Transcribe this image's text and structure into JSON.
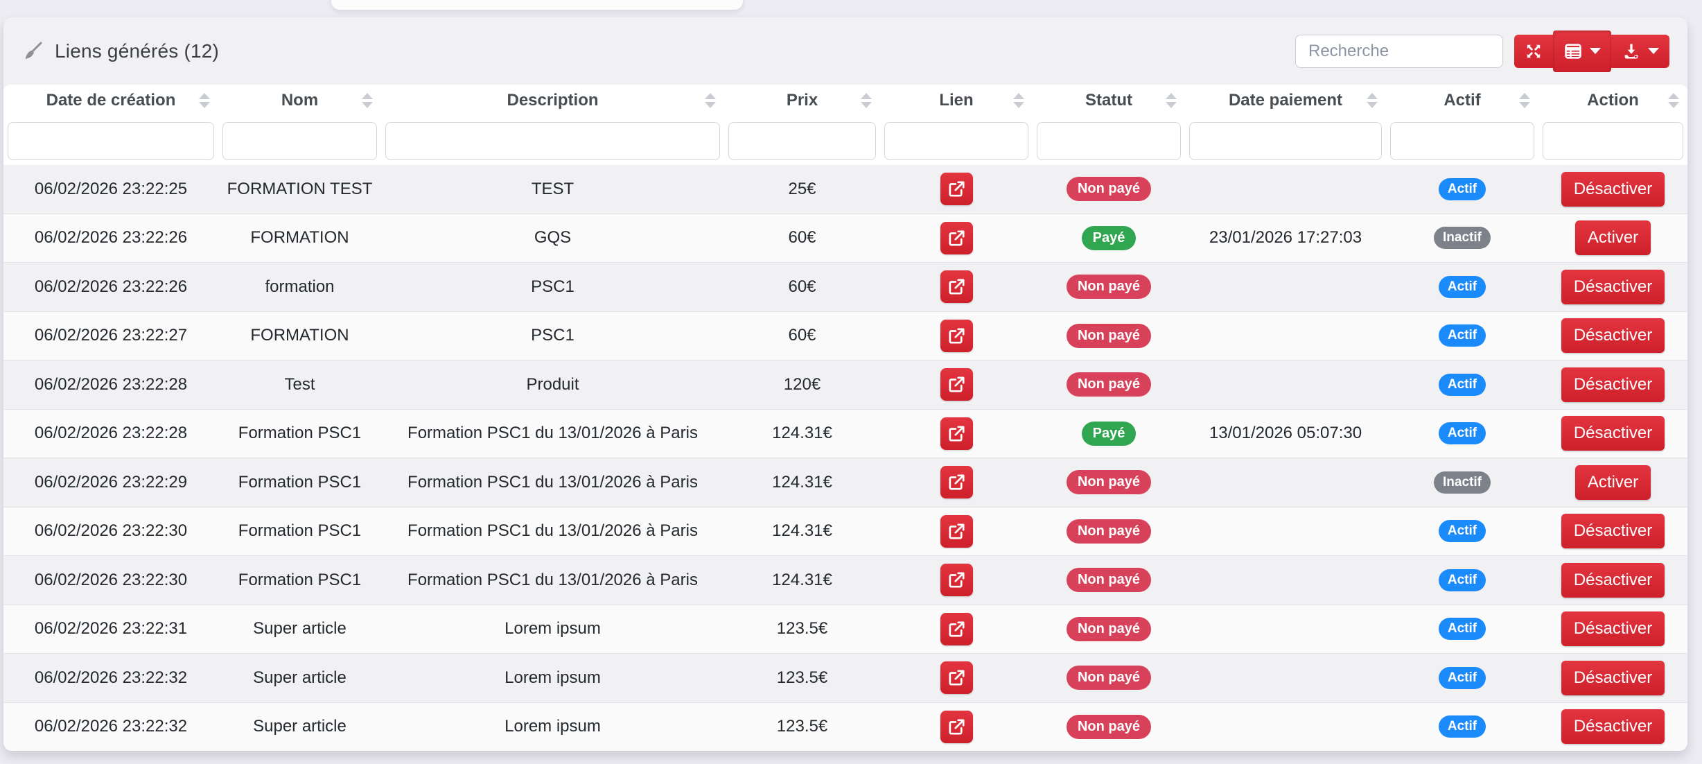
{
  "header": {
    "title": "Liens générés (12)",
    "title_icon": "broom-icon",
    "search": {
      "placeholder": "Recherche",
      "value": ""
    },
    "toolbar_icons": [
      "expand-arrows-icon",
      "table-columns-icon",
      "download-icon"
    ]
  },
  "table": {
    "columns": [
      "Date de création",
      "Nom",
      "Description",
      "Prix",
      "Lien",
      "Statut",
      "Date paiement",
      "Actif",
      "Action"
    ],
    "column_keys": [
      "date_creation",
      "nom",
      "description",
      "prix",
      "lien",
      "statut",
      "date_paiement",
      "actif",
      "action"
    ],
    "link_icon": "external-link-icon",
    "rows": [
      {
        "date_creation": "06/02/2026 23:22:25",
        "nom": "FORMATION TEST",
        "description": "TEST",
        "prix": "25€",
        "statut": "Non payé",
        "statut_type": "unpaid",
        "date_paiement": "",
        "actif": "Actif",
        "actif_type": "active",
        "action": "Désactiver"
      },
      {
        "date_creation": "06/02/2026 23:22:26",
        "nom": "FORMATION",
        "description": "GQS",
        "prix": "60€",
        "statut": "Payé",
        "statut_type": "paid",
        "date_paiement": "23/01/2026 17:27:03",
        "actif": "Inactif",
        "actif_type": "inactive",
        "action": "Activer"
      },
      {
        "date_creation": "06/02/2026 23:22:26",
        "nom": "formation",
        "description": "PSC1",
        "prix": "60€",
        "statut": "Non payé",
        "statut_type": "unpaid",
        "date_paiement": "",
        "actif": "Actif",
        "actif_type": "active",
        "action": "Désactiver"
      },
      {
        "date_creation": "06/02/2026 23:22:27",
        "nom": "FORMATION",
        "description": "PSC1",
        "prix": "60€",
        "statut": "Non payé",
        "statut_type": "unpaid",
        "date_paiement": "",
        "actif": "Actif",
        "actif_type": "active",
        "action": "Désactiver"
      },
      {
        "date_creation": "06/02/2026 23:22:28",
        "nom": "Test",
        "description": "Produit",
        "prix": "120€",
        "statut": "Non payé",
        "statut_type": "unpaid",
        "date_paiement": "",
        "actif": "Actif",
        "actif_type": "active",
        "action": "Désactiver"
      },
      {
        "date_creation": "06/02/2026 23:22:28",
        "nom": "Formation PSC1",
        "description": "Formation PSC1 du 13/01/2026 à Paris",
        "prix": "124.31€",
        "statut": "Payé",
        "statut_type": "paid",
        "date_paiement": "13/01/2026 05:07:30",
        "actif": "Actif",
        "actif_type": "active",
        "action": "Désactiver"
      },
      {
        "date_creation": "06/02/2026 23:22:29",
        "nom": "Formation PSC1",
        "description": "Formation PSC1 du 13/01/2026 à Paris",
        "prix": "124.31€",
        "statut": "Non payé",
        "statut_type": "unpaid",
        "date_paiement": "",
        "actif": "Inactif",
        "actif_type": "inactive",
        "action": "Activer"
      },
      {
        "date_creation": "06/02/2026 23:22:30",
        "nom": "Formation PSC1",
        "description": "Formation PSC1 du 13/01/2026 à Paris",
        "prix": "124.31€",
        "statut": "Non payé",
        "statut_type": "unpaid",
        "date_paiement": "",
        "actif": "Actif",
        "actif_type": "active",
        "action": "Désactiver"
      },
      {
        "date_creation": "06/02/2026 23:22:30",
        "nom": "Formation PSC1",
        "description": "Formation PSC1 du 13/01/2026 à Paris",
        "prix": "124.31€",
        "statut": "Non payé",
        "statut_type": "unpaid",
        "date_paiement": "",
        "actif": "Actif",
        "actif_type": "active",
        "action": "Désactiver"
      },
      {
        "date_creation": "06/02/2026 23:22:31",
        "nom": "Super article",
        "description": "Lorem ipsum",
        "prix": "123.5€",
        "statut": "Non payé",
        "statut_type": "unpaid",
        "date_paiement": "",
        "actif": "Actif",
        "actif_type": "active",
        "action": "Désactiver"
      },
      {
        "date_creation": "06/02/2026 23:22:32",
        "nom": "Super article",
        "description": "Lorem ipsum",
        "prix": "123.5€",
        "statut": "Non payé",
        "statut_type": "unpaid",
        "date_paiement": "",
        "actif": "Actif",
        "actif_type": "active",
        "action": "Désactiver"
      },
      {
        "date_creation": "06/02/2026 23:22:32",
        "nom": "Super article",
        "description": "Lorem ipsum",
        "prix": "123.5€",
        "statut": "Non payé",
        "statut_type": "unpaid",
        "date_paiement": "",
        "actif": "Actif",
        "actif_type": "active",
        "action": "Désactiver"
      }
    ]
  },
  "colors": {
    "accent_red_a": "#e23540",
    "accent_red_b": "#cd202b",
    "badge_red": "#d7415a",
    "badge_green": "#30a650",
    "badge_blue": "#1b8afb",
    "badge_gray": "#7d828a"
  }
}
